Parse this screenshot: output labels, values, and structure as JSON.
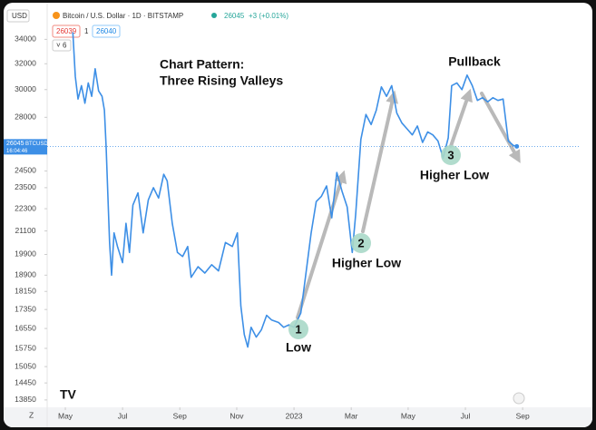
{
  "header": {
    "currency": "USD",
    "symbol": "Bitcoin / U.S. Dollar · 1D · BITSTAMP",
    "price": "26045",
    "change": "+3 (+0.01%)",
    "bid": "26039",
    "spread": "1",
    "ask": "26040",
    "indicators": "6",
    "ticker": "BTCUSD",
    "countdown": "16:04:46",
    "zoom": "Z"
  },
  "chart_data": {
    "type": "line",
    "log_scale": true,
    "grid": false,
    "title": "Chart Pattern:",
    "subtitle": "Three Rising Valleys",
    "annotations": [
      {
        "number": "1",
        "label": "Low"
      },
      {
        "number": "2",
        "label": "Higher Low"
      },
      {
        "number": "3",
        "label": "Higher Low"
      },
      {
        "label": "Pullback"
      }
    ],
    "x": [
      2022.355,
      2022.362,
      2022.37,
      2022.38,
      2022.39,
      2022.4,
      2022.41,
      2022.42,
      2022.43,
      2022.44,
      2022.447,
      2022.452,
      2022.458,
      2022.462,
      2022.468,
      2022.475,
      2022.485,
      2022.5,
      2022.51,
      2022.52,
      2022.53,
      2022.545,
      2022.56,
      2022.575,
      2022.59,
      2022.605,
      2022.62,
      2022.63,
      2022.645,
      2022.66,
      2022.675,
      2022.69,
      2022.7,
      2022.72,
      2022.74,
      2022.76,
      2022.78,
      2022.8,
      2022.82,
      2022.835,
      2022.845,
      2022.855,
      2022.865,
      2022.875,
      2022.89,
      2022.905,
      2022.92,
      2022.935,
      2022.955,
      2022.97,
      2022.985,
      2023.0,
      2023.02,
      2023.035,
      2023.05,
      2023.065,
      2023.08,
      2023.095,
      2023.11,
      2023.125,
      2023.14,
      2023.155,
      2023.17,
      2023.18,
      2023.195,
      2023.21,
      2023.225,
      2023.24,
      2023.255,
      2023.27,
      2023.285,
      2023.3,
      2023.315,
      2023.33,
      2023.345,
      2023.36,
      2023.375,
      2023.39,
      2023.405,
      2023.42,
      2023.435,
      2023.45,
      2023.46,
      2023.475,
      2023.49,
      2023.505,
      2023.52,
      2023.535,
      2023.55,
      2023.565,
      2023.58,
      2023.595,
      2023.61,
      2023.625,
      2023.64,
      2023.65
    ],
    "series": [
      {
        "name": "BTCUSD",
        "color": "#3d8fe6",
        "values": [
          34600,
          31000,
          29300,
          30300,
          29000,
          30500,
          29500,
          31600,
          29900,
          29500,
          28500,
          26000,
          22500,
          20500,
          18900,
          21000,
          20300,
          19500,
          21500,
          20000,
          22500,
          23200,
          21000,
          22800,
          23500,
          22900,
          24300,
          23900,
          21500,
          20000,
          19800,
          20300,
          18800,
          19300,
          19000,
          19400,
          19100,
          20500,
          20300,
          21000,
          17500,
          16300,
          15800,
          16600,
          16200,
          16500,
          17100,
          16900,
          16800,
          16600,
          16700,
          16600,
          17200,
          19000,
          21000,
          22700,
          23000,
          23600,
          21800,
          24400,
          23300,
          22400,
          20000,
          22000,
          26500,
          28200,
          27500,
          28500,
          30200,
          29500,
          30300,
          28300,
          27600,
          27200,
          26800,
          27400,
          26300,
          27000,
          26800,
          26400,
          25300,
          26600,
          30300,
          30500,
          30000,
          31100,
          30300,
          29200,
          29400,
          29100,
          29400,
          29200,
          29300,
          26400,
          26100,
          26045
        ]
      }
    ],
    "ylim": [
      13600,
      35200
    ],
    "yticks": [
      13850,
      14450,
      15050,
      15750,
      16550,
      17350,
      18150,
      18900,
      19900,
      21100,
      22300,
      23500,
      24500,
      28000,
      30000,
      32000,
      34000
    ],
    "xlim": [
      2022.28,
      2023.836
    ],
    "xticks": [
      {
        "value": 2022.333,
        "label": "May"
      },
      {
        "value": 2022.5,
        "label": "Jul"
      },
      {
        "value": 2022.667,
        "label": "Sep"
      },
      {
        "value": 2022.833,
        "label": "Nov"
      },
      {
        "value": 2023.0,
        "label": "2023"
      },
      {
        "value": 2023.167,
        "label": "Mar"
      },
      {
        "value": 2023.333,
        "label": "May"
      },
      {
        "value": 2023.5,
        "label": "Jul"
      },
      {
        "value": 2023.667,
        "label": "Sep"
      }
    ]
  }
}
